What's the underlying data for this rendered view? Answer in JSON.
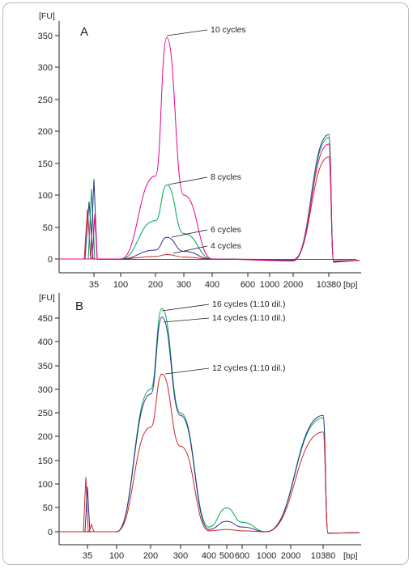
{
  "chart_data": [
    {
      "type": "line",
      "panel_label": "A",
      "y_unit_label": "[FU]",
      "x_unit_label": "[bp]",
      "ylim": [
        -10,
        362
      ],
      "y_ticks": [
        "0",
        "50",
        "100",
        "150",
        "200",
        "250",
        "300",
        "350"
      ],
      "x_ticks": [
        "35",
        "100",
        "200",
        "300",
        "400",
        "600",
        "1000",
        "2000",
        "10380"
      ],
      "grid": false,
      "colors": {
        "cycles_4": "#d2232a",
        "cycles_6": "#2e3192",
        "cycles_8": "#00a651",
        "cycles_10": "#ec008c",
        "baseline": "#231f20"
      },
      "series": [
        {
          "name": "4 cycles",
          "color_key": "cycles_4",
          "points": [
            [
              "35",
              0
            ],
            [
              "100",
              0
            ],
            [
              "200",
              4
            ],
            [
              "250",
              7
            ],
            [
              "300",
              3
            ],
            [
              "400",
              0
            ],
            [
              "2000",
              -1
            ],
            [
              "10380",
              160
            ],
            [
              "10380+",
              -3
            ]
          ]
        },
        {
          "name": "6 cycles",
          "color_key": "cycles_6",
          "points": [
            [
              "35",
              0
            ],
            [
              "100",
              0
            ],
            [
              "200",
              14
            ],
            [
              "250",
              34
            ],
            [
              "300",
              12
            ],
            [
              "400",
              0
            ],
            [
              "2000",
              -2
            ],
            [
              "10380",
              195
            ],
            [
              "10380+",
              -4
            ]
          ]
        },
        {
          "name": "8 cycles",
          "color_key": "cycles_8",
          "points": [
            [
              "35",
              0
            ],
            [
              "100",
              0
            ],
            [
              "200",
              60
            ],
            [
              "250",
              116
            ],
            [
              "300",
              40
            ],
            [
              "400",
              0
            ],
            [
              "2000",
              -3
            ],
            [
              "10380",
              190
            ],
            [
              "10380+",
              -5
            ]
          ]
        },
        {
          "name": "10 cycles",
          "color_key": "cycles_10",
          "points": [
            [
              "35",
              0
            ],
            [
              "100",
              0
            ],
            [
              "200",
              130
            ],
            [
              "250",
              347
            ],
            [
              "300",
              100
            ],
            [
              "400",
              0
            ],
            [
              "2000",
              -3
            ],
            [
              "10380",
              180
            ],
            [
              "10380+",
              -5
            ]
          ]
        }
      ],
      "annotations": [
        {
          "text": "10 cycles",
          "series": "10 cycles",
          "x": "250",
          "y": 347
        },
        {
          "text": "8 cycles",
          "series": "8 cycles",
          "x": "250",
          "y": 116
        },
        {
          "text": "6 cycles",
          "series": "6 cycles",
          "x": "250",
          "y": 34
        },
        {
          "text": "4 cycles",
          "series": "4 cycles",
          "x": "250",
          "y": 7
        }
      ]
    },
    {
      "type": "line",
      "panel_label": "B",
      "y_unit_label": "[FU]",
      "x_unit_label": "[bp]",
      "ylim": [
        -10,
        478
      ],
      "y_ticks": [
        "0",
        "50",
        "100",
        "150",
        "200",
        "250",
        "300",
        "350",
        "400",
        "450"
      ],
      "x_ticks": [
        "35",
        "100",
        "200",
        "300",
        "400",
        "500",
        "600",
        "1000",
        "2000",
        "10380"
      ],
      "grid": false,
      "colors": {
        "cycles_12": "#d2232a",
        "cycles_14": "#2e3192",
        "cycles_16": "#00a651"
      },
      "series": [
        {
          "name": "16 cycles (1:10 dil.)",
          "color_key": "cycles_16",
          "points": [
            [
              "35",
              0
            ],
            [
              "100",
              0
            ],
            [
              "200",
              300
            ],
            [
              "250",
              470
            ],
            [
              "300",
              250
            ],
            [
              "400",
              10
            ],
            [
              "500",
              50
            ],
            [
              "600",
              20
            ],
            [
              "1000",
              0
            ],
            [
              "10380",
              240
            ],
            [
              "10380+",
              -3
            ]
          ]
        },
        {
          "name": "14 cycles (1:10 dil.)",
          "color_key": "cycles_14",
          "points": [
            [
              "35",
              0
            ],
            [
              "100",
              0
            ],
            [
              "200",
              290
            ],
            [
              "250",
              452
            ],
            [
              "300",
              245
            ],
            [
              "400",
              5
            ],
            [
              "500",
              22
            ],
            [
              "600",
              10
            ],
            [
              "1000",
              0
            ],
            [
              "10380",
              245
            ],
            [
              "10380+",
              -3
            ]
          ]
        },
        {
          "name": "12 cycles (1:10 dil.)",
          "color_key": "cycles_12",
          "points": [
            [
              "35",
              0
            ],
            [
              "100",
              0
            ],
            [
              "200",
              220
            ],
            [
              "250",
              332
            ],
            [
              "300",
              180
            ],
            [
              "400",
              2
            ],
            [
              "500",
              5
            ],
            [
              "600",
              2
            ],
            [
              "1000",
              0
            ],
            [
              "10380",
              210
            ],
            [
              "10380+",
              -3
            ]
          ]
        }
      ],
      "annotations": [
        {
          "text": "16 cycles (1:10 dil.)",
          "series": "16 cycles (1:10 dil.)",
          "x": "250",
          "y": 470
        },
        {
          "text": "14 cycles (1:10 dil.)",
          "series": "14 cycles (1:10 dil.)",
          "x": "250",
          "y": 452
        },
        {
          "text": "12 cycles (1:10 dil.)",
          "series": "12 cycles (1:10 dil.)",
          "x": "250",
          "y": 332
        }
      ]
    }
  ]
}
